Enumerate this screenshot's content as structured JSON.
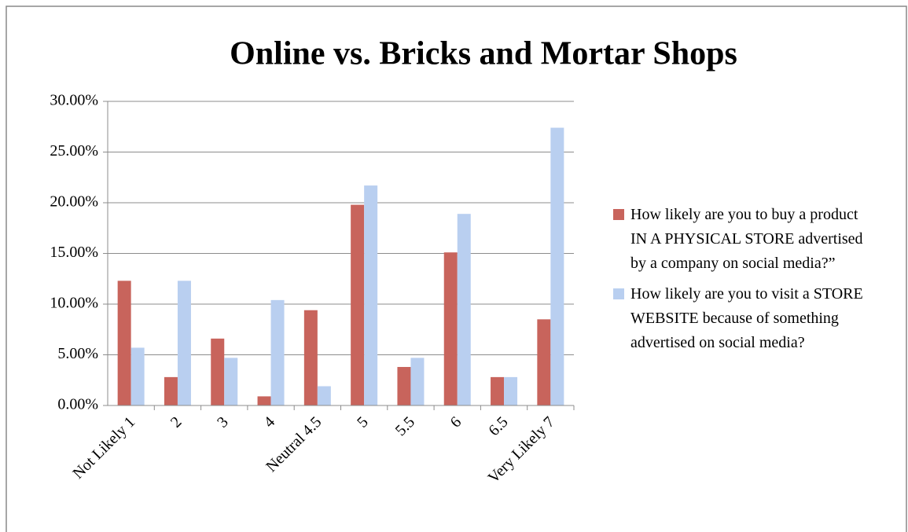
{
  "chart_data": {
    "type": "bar",
    "title": "Online vs. Bricks and Mortar Shops",
    "categories": [
      "Not Likely 1",
      "2",
      "3",
      "4",
      "Neutral 4.5",
      "5",
      "5.5",
      "6",
      "6.5",
      "Very Likely 7"
    ],
    "series": [
      {
        "name": "How likely are you to buy a product IN A PHYSICAL STORE advertised by a company on social media?”",
        "color": "#c8645c",
        "values": [
          12.3,
          2.8,
          6.6,
          0.9,
          9.4,
          19.8,
          3.8,
          15.1,
          2.8,
          8.5
        ]
      },
      {
        "name": "How likely are you to visit a STORE WEBSITE because of something advertised on social media?",
        "color": "#b9cff0",
        "values": [
          5.7,
          12.3,
          4.7,
          10.4,
          1.9,
          21.7,
          4.7,
          18.9,
          2.8,
          27.4
        ]
      }
    ],
    "ylim": [
      0,
      30
    ],
    "yticks": [
      {
        "value": 0,
        "label": "0.00%"
      },
      {
        "value": 5,
        "label": "5.00%"
      },
      {
        "value": 10,
        "label": "10.00%"
      },
      {
        "value": 15,
        "label": "15.00%"
      },
      {
        "value": 20,
        "label": "20.00%"
      },
      {
        "value": 25,
        "label": "25.00%"
      },
      {
        "value": 30,
        "label": "30.00%"
      }
    ],
    "grid": true,
    "legend": "right"
  }
}
